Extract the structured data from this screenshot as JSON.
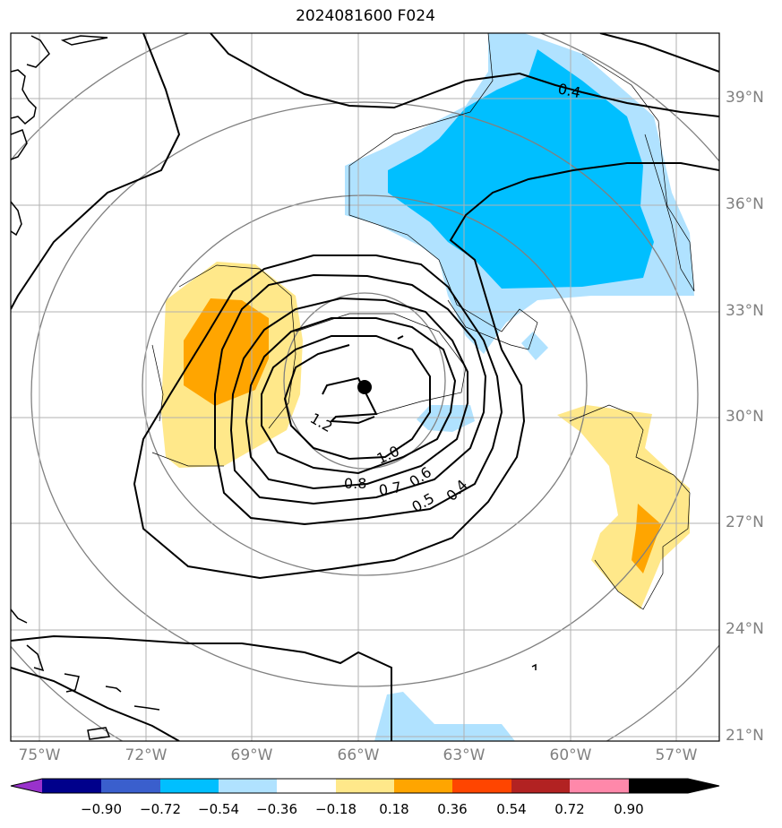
{
  "title": "2024081600 F024",
  "lat_labels": [
    "39°N",
    "36°N",
    "33°N",
    "30°N",
    "27°N",
    "24°N",
    "21°N"
  ],
  "lon_labels": [
    "75°W",
    "72°W",
    "69°W",
    "66°W",
    "63°W",
    "60°W",
    "57°W"
  ],
  "colorbar": {
    "ticks": [
      "−0.90",
      "−0.72",
      "−0.54",
      "−0.36",
      "−0.18",
      "0.18",
      "0.36",
      "0.54",
      "0.72",
      "0.90"
    ],
    "colors": [
      "#9932cc",
      "#00008b",
      "#3a5fcd",
      "#00bfff",
      "#b0e2ff",
      "#ffffff",
      "#ffe88a",
      "#ffa500",
      "#ff4500",
      "#b22222",
      "#ff88aa"
    ]
  },
  "contour_labels": [
    "0.4",
    "1.2",
    "1.0",
    "0.8",
    "0.7",
    "0.6",
    "0.5",
    "0.4"
  ],
  "colors": {
    "ring": "#808080",
    "grid": "#b0b0b0",
    "contour": "#000000"
  },
  "chart_data": {
    "type": "map",
    "title": "2024081600 F024",
    "extent": {
      "lon": [
        -76,
        -56
      ],
      "lat": [
        21,
        40.5
      ]
    },
    "grid": true,
    "storm_center": {
      "lon": -66,
      "lat": 30.9
    },
    "contour_levels": [
      0.4,
      0.5,
      0.6,
      0.7,
      0.8,
      1.0,
      1.2
    ],
    "fill_levels": [
      -0.9,
      -0.72,
      -0.54,
      -0.36,
      -0.18,
      0.18,
      0.36,
      0.54,
      0.72,
      0.9
    ]
  }
}
